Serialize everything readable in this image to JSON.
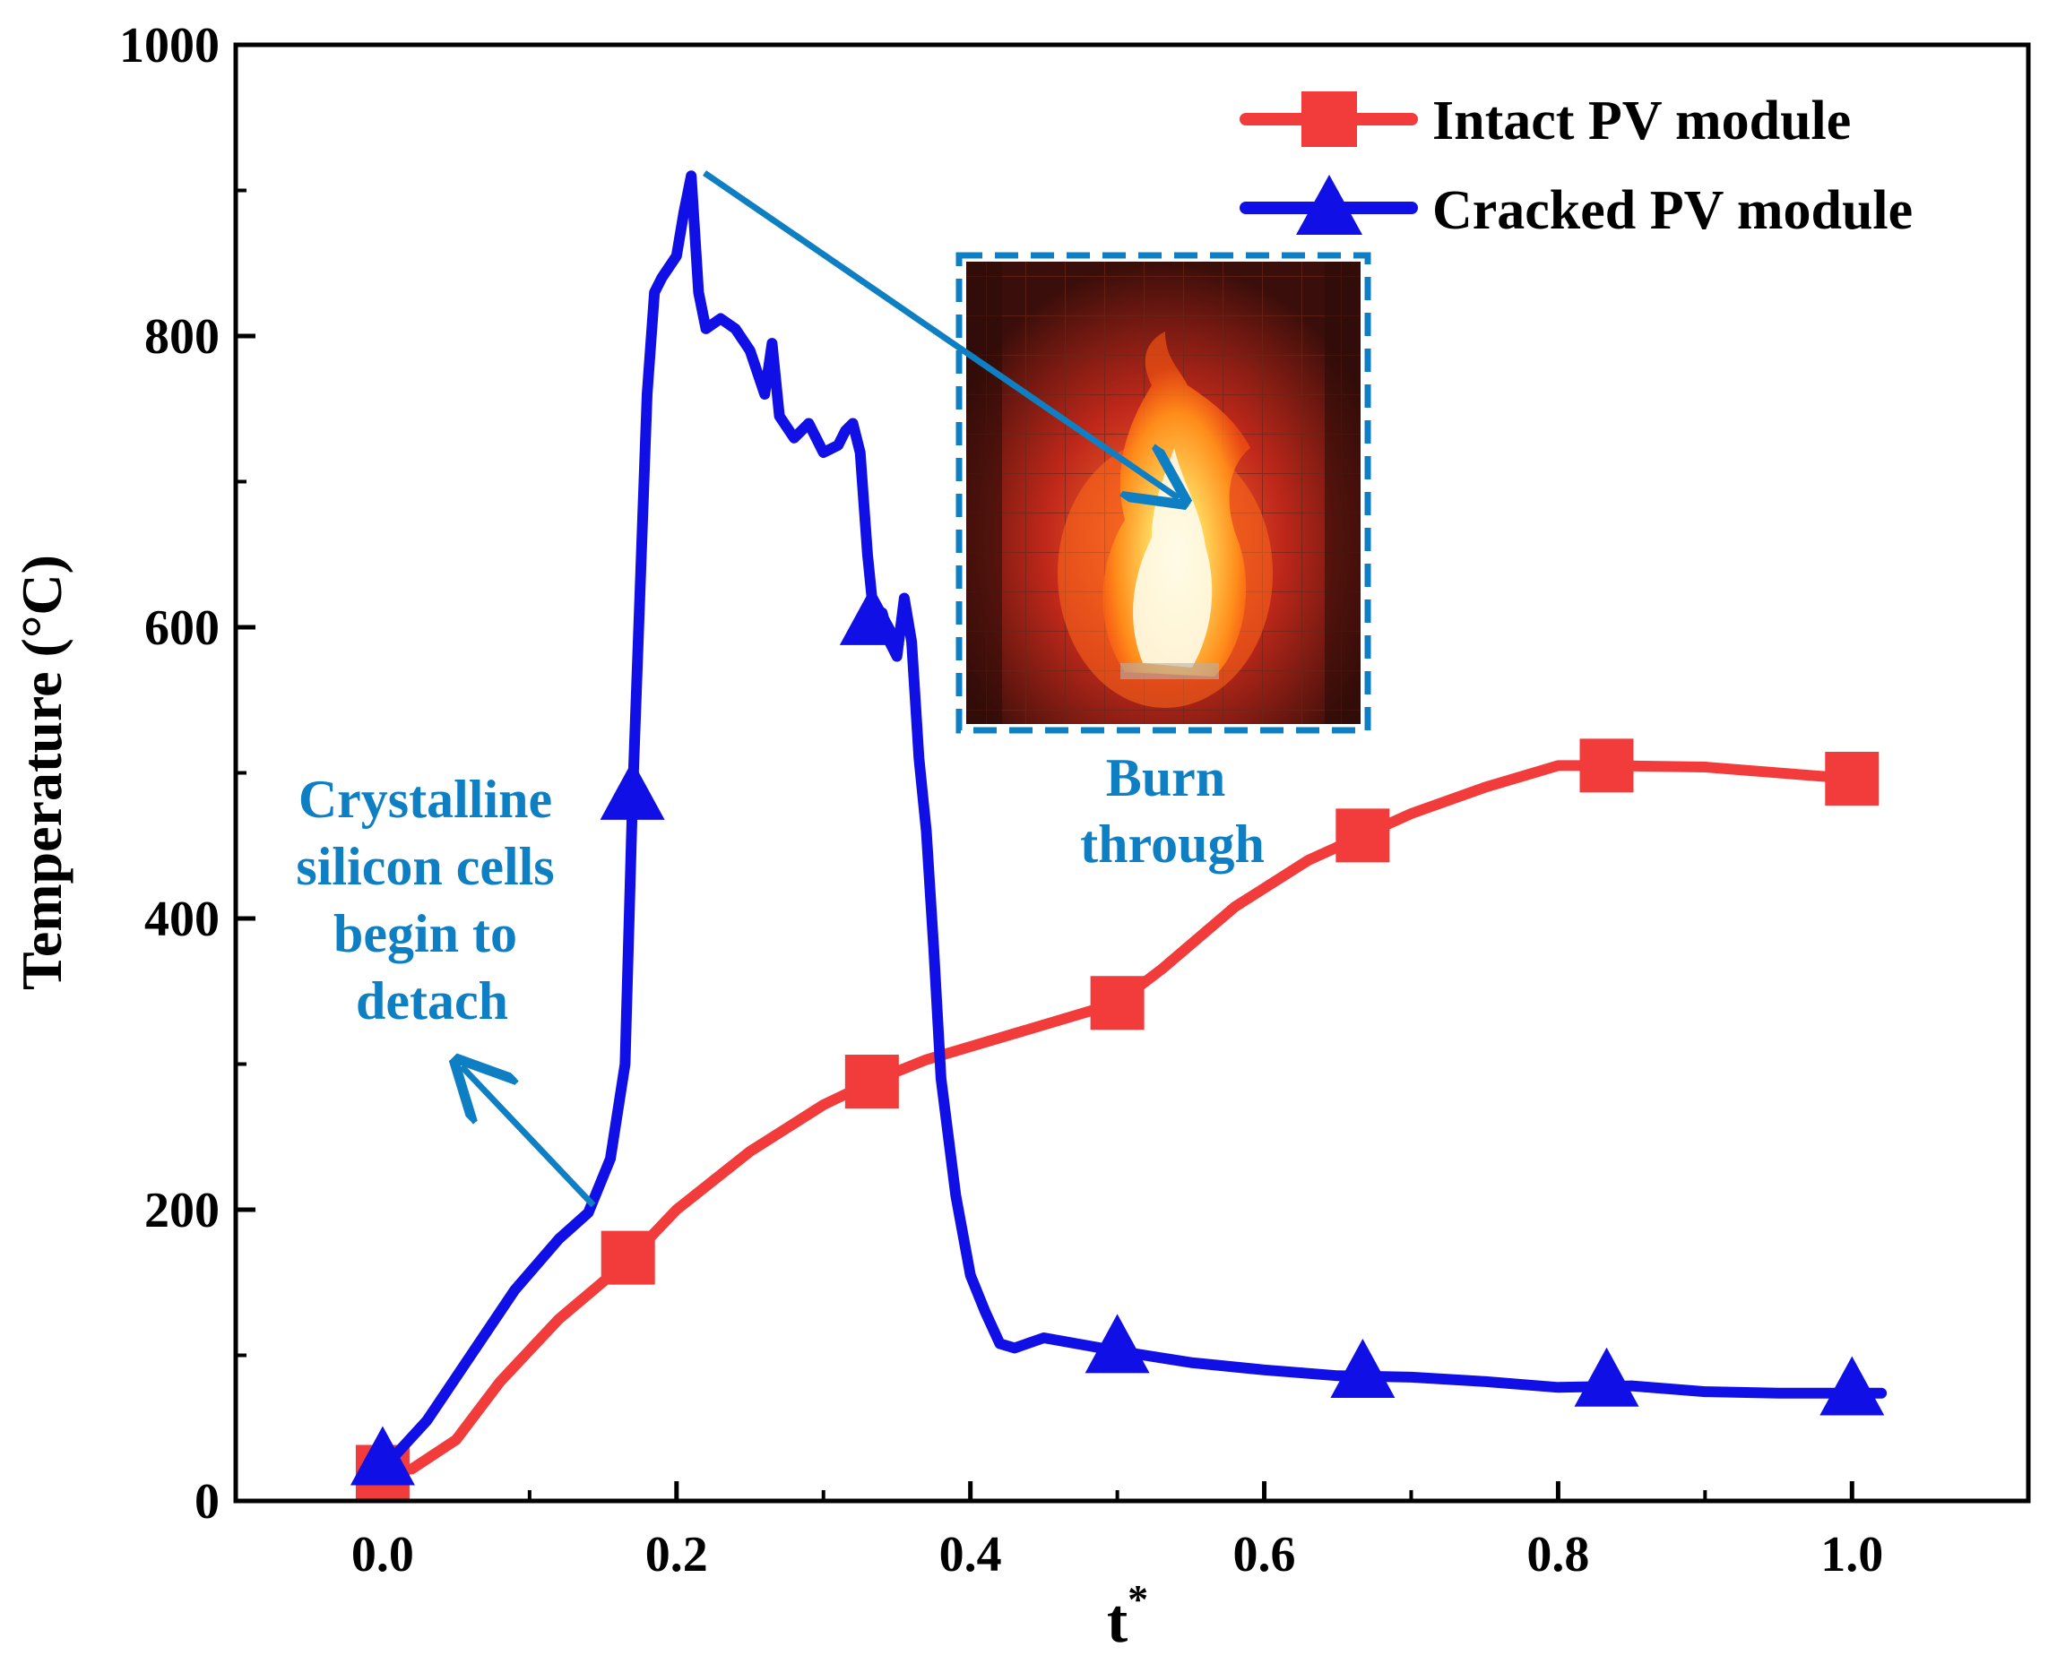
{
  "chart_data": {
    "type": "line",
    "title": "",
    "xlabel": "t",
    "xlabel_superscript": "*",
    "ylabel": "Temperature (°C)",
    "xlim": [
      -0.1,
      1.12
    ],
    "ylim": [
      0,
      1000
    ],
    "x_ticks": [
      "0.0",
      "0.2",
      "0.4",
      "0.6",
      "0.8",
      "1.0"
    ],
    "y_ticks": [
      "0",
      "200",
      "400",
      "600",
      "800",
      "1000"
    ],
    "legend_position": "top-right",
    "series": [
      {
        "name": "Intact PV module",
        "color": "#f23b3b",
        "marker": "square",
        "line": [
          [
            0.0,
            20
          ],
          [
            0.02,
            22
          ],
          [
            0.05,
            42
          ],
          [
            0.08,
            82
          ],
          [
            0.12,
            125
          ],
          [
            0.167,
            165
          ],
          [
            0.2,
            200
          ],
          [
            0.25,
            240
          ],
          [
            0.3,
            272
          ],
          [
            0.333,
            288
          ],
          [
            0.37,
            303
          ],
          [
            0.42,
            318
          ],
          [
            0.5,
            342
          ],
          [
            0.53,
            365
          ],
          [
            0.58,
            408
          ],
          [
            0.63,
            440
          ],
          [
            0.667,
            457
          ],
          [
            0.7,
            472
          ],
          [
            0.75,
            490
          ],
          [
            0.8,
            505
          ],
          [
            0.833,
            505
          ],
          [
            0.9,
            504
          ],
          [
            1.0,
            496
          ]
        ],
        "markers": [
          [
            0.0,
            20
          ],
          [
            0.167,
            167
          ],
          [
            0.333,
            288
          ],
          [
            0.5,
            342
          ],
          [
            0.667,
            457
          ],
          [
            0.833,
            505
          ],
          [
            1.0,
            496
          ]
        ]
      },
      {
        "name": "Cracked PV module",
        "color": "#0f0fe6",
        "marker": "triangle",
        "line": [
          [
            0.0,
            22
          ],
          [
            0.03,
            55
          ],
          [
            0.06,
            100
          ],
          [
            0.09,
            145
          ],
          [
            0.12,
            180
          ],
          [
            0.14,
            198
          ],
          [
            0.155,
            235
          ],
          [
            0.165,
            300
          ],
          [
            0.17,
            480
          ],
          [
            0.18,
            760
          ],
          [
            0.185,
            830
          ],
          [
            0.19,
            840
          ],
          [
            0.2,
            855
          ],
          [
            0.205,
            885
          ],
          [
            0.21,
            910
          ],
          [
            0.215,
            830
          ],
          [
            0.22,
            805
          ],
          [
            0.23,
            812
          ],
          [
            0.24,
            805
          ],
          [
            0.25,
            790
          ],
          [
            0.26,
            760
          ],
          [
            0.265,
            795
          ],
          [
            0.27,
            745
          ],
          [
            0.28,
            730
          ],
          [
            0.29,
            740
          ],
          [
            0.3,
            720
          ],
          [
            0.31,
            725
          ],
          [
            0.315,
            735
          ],
          [
            0.32,
            740
          ],
          [
            0.325,
            720
          ],
          [
            0.33,
            650
          ],
          [
            0.335,
            600
          ],
          [
            0.34,
            610
          ],
          [
            0.345,
            590
          ],
          [
            0.35,
            580
          ],
          [
            0.355,
            620
          ],
          [
            0.36,
            590
          ],
          [
            0.365,
            510
          ],
          [
            0.37,
            460
          ],
          [
            0.375,
            380
          ],
          [
            0.38,
            290
          ],
          [
            0.39,
            210
          ],
          [
            0.4,
            155
          ],
          [
            0.41,
            130
          ],
          [
            0.42,
            108
          ],
          [
            0.43,
            105
          ],
          [
            0.45,
            112
          ],
          [
            0.5,
            103
          ],
          [
            0.55,
            95
          ],
          [
            0.6,
            90
          ],
          [
            0.65,
            86
          ],
          [
            0.7,
            85
          ],
          [
            0.75,
            82
          ],
          [
            0.8,
            78
          ],
          [
            0.85,
            79
          ],
          [
            0.9,
            75
          ],
          [
            0.95,
            74
          ],
          [
            1.0,
            74
          ],
          [
            1.02,
            74
          ]
        ],
        "markers": [
          [
            0.0,
            28
          ],
          [
            0.17,
            485
          ],
          [
            0.333,
            605
          ],
          [
            0.5,
            105
          ],
          [
            0.667,
            88
          ],
          [
            0.833,
            82
          ],
          [
            1.0,
            76
          ]
        ]
      }
    ],
    "annotations": [
      {
        "name": "detach",
        "lines": [
          "Crystalline",
          "silicon cells",
          "begin to",
          "detach"
        ],
        "color": "#0f7fc4"
      },
      {
        "name": "burn",
        "lines": [
          "Burn",
          "through"
        ],
        "color": "#0f7fc4"
      }
    ],
    "inset_photo": "fire photo of cracked PV module burning through"
  }
}
